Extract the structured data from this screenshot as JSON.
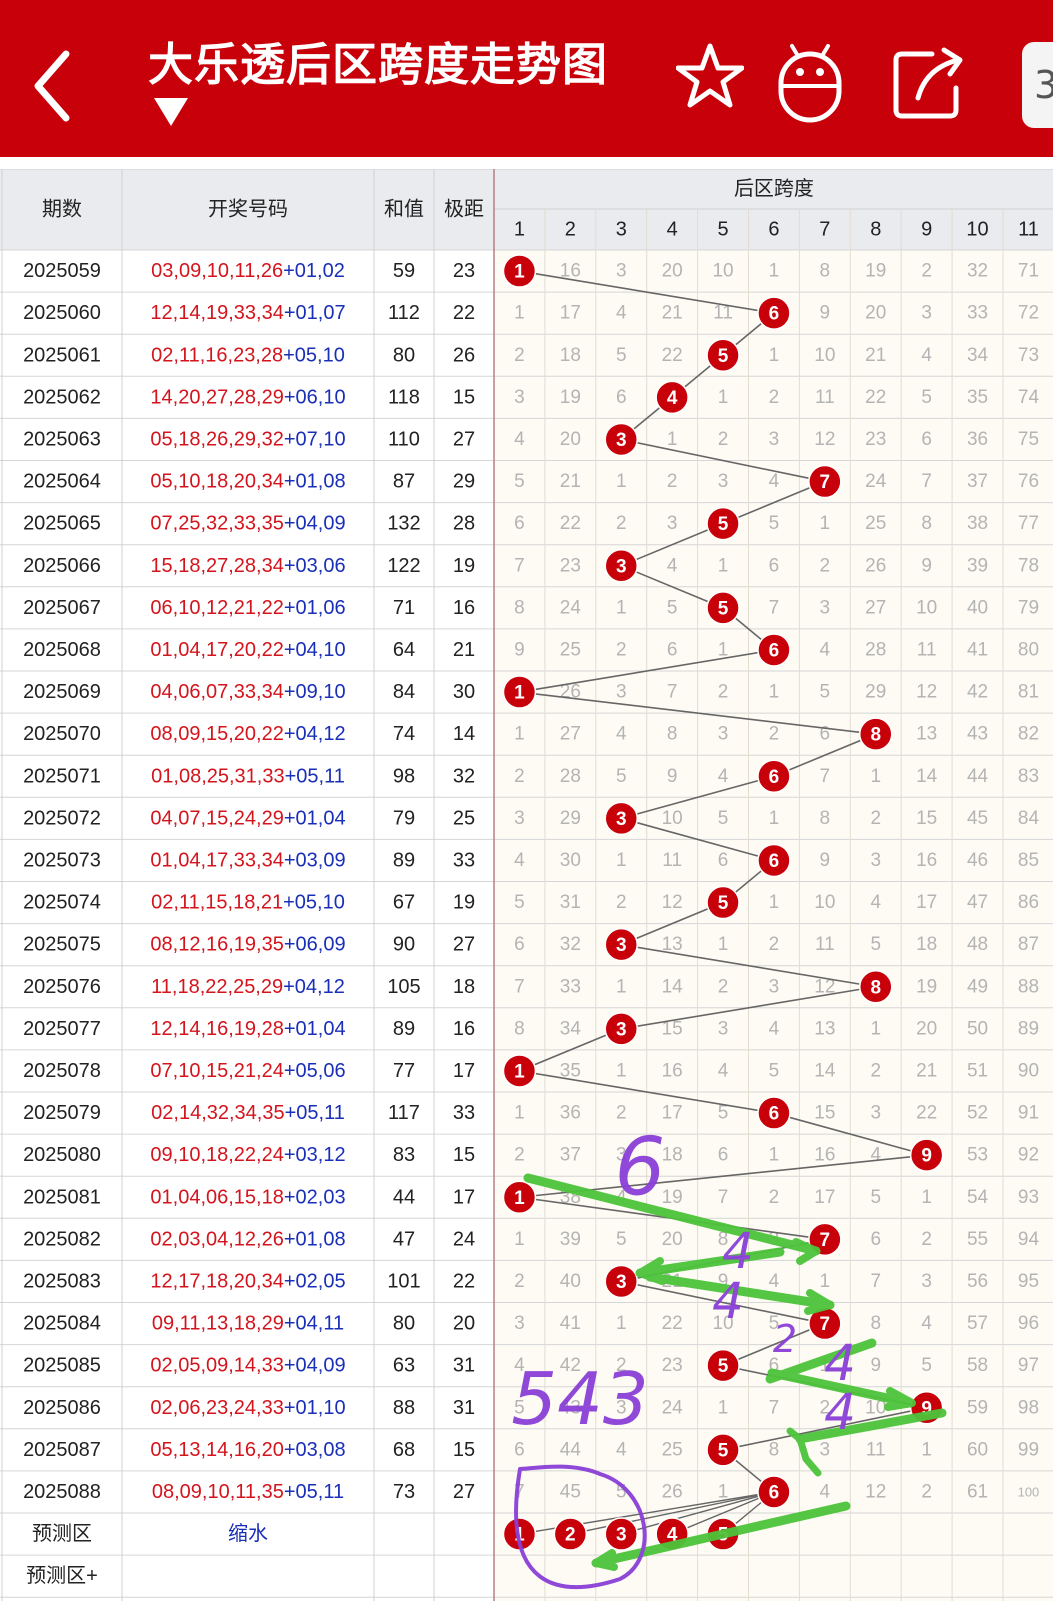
{
  "header": {
    "title": "大乐透后区跨度走势图",
    "edge_label": "3"
  },
  "colors": {
    "header_bg": "#c8000a",
    "red_ball": "#c8000a",
    "red_numbers": "#d4141c",
    "blue_numbers": "#1a2fb8",
    "miss_numbers": "#b4b4b4",
    "grid_header_bg": "#e9ebee",
    "grid_body_bg": "#fdfbf3",
    "annotation_green": "#4dc43a",
    "annotation_purple": "#8a3fd6"
  },
  "table": {
    "headers": {
      "period": "期数",
      "numbers": "开奖号码",
      "sum": "和值",
      "range": "极距",
      "span_group": "后区跨度"
    },
    "span_columns": [
      "1",
      "2",
      "3",
      "4",
      "5",
      "6",
      "7",
      "8",
      "9",
      "10",
      "11"
    ],
    "rows": [
      {
        "period": "2025059",
        "front": "03,09,10,11,26",
        "back": "+01,02",
        "sum": "59",
        "range": "23",
        "hit": 1,
        "miss": [
          "",
          "16",
          "3",
          "20",
          "10",
          "1",
          "8",
          "19",
          "2",
          "32",
          "71"
        ]
      },
      {
        "period": "2025060",
        "front": "12,14,19,33,34",
        "back": "+01,07",
        "sum": "112",
        "range": "22",
        "hit": 6,
        "miss": [
          "1",
          "17",
          "4",
          "21",
          "11",
          "",
          "9",
          "20",
          "3",
          "33",
          "72"
        ]
      },
      {
        "period": "2025061",
        "front": "02,11,16,23,28",
        "back": "+05,10",
        "sum": "80",
        "range": "26",
        "hit": 5,
        "miss": [
          "2",
          "18",
          "5",
          "22",
          "",
          "1",
          "10",
          "21",
          "4",
          "34",
          "73"
        ]
      },
      {
        "period": "2025062",
        "front": "14,20,27,28,29",
        "back": "+06,10",
        "sum": "118",
        "range": "15",
        "hit": 4,
        "miss": [
          "3",
          "19",
          "6",
          "",
          "1",
          "2",
          "11",
          "22",
          "5",
          "35",
          "74"
        ]
      },
      {
        "period": "2025063",
        "front": "05,18,26,29,32",
        "back": "+07,10",
        "sum": "110",
        "range": "27",
        "hit": 3,
        "miss": [
          "4",
          "20",
          "",
          "1",
          "2",
          "3",
          "12",
          "23",
          "6",
          "36",
          "75"
        ]
      },
      {
        "period": "2025064",
        "front": "05,10,18,20,34",
        "back": "+01,08",
        "sum": "87",
        "range": "29",
        "hit": 7,
        "miss": [
          "5",
          "21",
          "1",
          "2",
          "3",
          "4",
          "",
          "24",
          "7",
          "37",
          "76"
        ]
      },
      {
        "period": "2025065",
        "front": "07,25,32,33,35",
        "back": "+04,09",
        "sum": "132",
        "range": "28",
        "hit": 5,
        "miss": [
          "6",
          "22",
          "2",
          "3",
          "",
          "5",
          "1",
          "25",
          "8",
          "38",
          "77"
        ]
      },
      {
        "period": "2025066",
        "front": "15,18,27,28,34",
        "back": "+03,06",
        "sum": "122",
        "range": "19",
        "hit": 3,
        "miss": [
          "7",
          "23",
          "",
          "4",
          "1",
          "6",
          "2",
          "26",
          "9",
          "39",
          "78"
        ]
      },
      {
        "period": "2025067",
        "front": "06,10,12,21,22",
        "back": "+01,06",
        "sum": "71",
        "range": "16",
        "hit": 5,
        "miss": [
          "8",
          "24",
          "1",
          "5",
          "",
          "7",
          "3",
          "27",
          "10",
          "40",
          "79"
        ]
      },
      {
        "period": "2025068",
        "front": "01,04,17,20,22",
        "back": "+04,10",
        "sum": "64",
        "range": "21",
        "hit": 6,
        "miss": [
          "9",
          "25",
          "2",
          "6",
          "1",
          "",
          "4",
          "28",
          "11",
          "41",
          "80"
        ]
      },
      {
        "period": "2025069",
        "front": "04,06,07,33,34",
        "back": "+09,10",
        "sum": "84",
        "range": "30",
        "hit": 1,
        "miss": [
          "",
          "26",
          "3",
          "7",
          "2",
          "1",
          "5",
          "29",
          "12",
          "42",
          "81"
        ]
      },
      {
        "period": "2025070",
        "front": "08,09,15,20,22",
        "back": "+04,12",
        "sum": "74",
        "range": "14",
        "hit": 8,
        "miss": [
          "1",
          "27",
          "4",
          "8",
          "3",
          "2",
          "6",
          "",
          "13",
          "43",
          "82"
        ]
      },
      {
        "period": "2025071",
        "front": "01,08,25,31,33",
        "back": "+05,11",
        "sum": "98",
        "range": "32",
        "hit": 6,
        "miss": [
          "2",
          "28",
          "5",
          "9",
          "4",
          "",
          "7",
          "1",
          "14",
          "44",
          "83"
        ]
      },
      {
        "period": "2025072",
        "front": "04,07,15,24,29",
        "back": "+01,04",
        "sum": "79",
        "range": "25",
        "hit": 3,
        "miss": [
          "3",
          "29",
          "",
          "10",
          "5",
          "1",
          "8",
          "2",
          "15",
          "45",
          "84"
        ]
      },
      {
        "period": "2025073",
        "front": "01,04,17,33,34",
        "back": "+03,09",
        "sum": "89",
        "range": "33",
        "hit": 6,
        "miss": [
          "4",
          "30",
          "1",
          "11",
          "6",
          "",
          "9",
          "3",
          "16",
          "46",
          "85"
        ]
      },
      {
        "period": "2025074",
        "front": "02,11,15,18,21",
        "back": "+05,10",
        "sum": "67",
        "range": "19",
        "hit": 5,
        "miss": [
          "5",
          "31",
          "2",
          "12",
          "",
          "1",
          "10",
          "4",
          "17",
          "47",
          "86"
        ]
      },
      {
        "period": "2025075",
        "front": "08,12,16,19,35",
        "back": "+06,09",
        "sum": "90",
        "range": "27",
        "hit": 3,
        "miss": [
          "6",
          "32",
          "",
          "13",
          "1",
          "2",
          "11",
          "5",
          "18",
          "48",
          "87"
        ]
      },
      {
        "period": "2025076",
        "front": "11,18,22,25,29",
        "back": "+04,12",
        "sum": "105",
        "range": "18",
        "hit": 8,
        "miss": [
          "7",
          "33",
          "1",
          "14",
          "2",
          "3",
          "12",
          "",
          "19",
          "49",
          "88"
        ]
      },
      {
        "period": "2025077",
        "front": "12,14,16,19,28",
        "back": "+01,04",
        "sum": "89",
        "range": "16",
        "hit": 3,
        "miss": [
          "8",
          "34",
          "",
          "15",
          "3",
          "4",
          "13",
          "1",
          "20",
          "50",
          "89"
        ]
      },
      {
        "period": "2025078",
        "front": "07,10,15,21,24",
        "back": "+05,06",
        "sum": "77",
        "range": "17",
        "hit": 1,
        "miss": [
          "",
          "35",
          "1",
          "16",
          "4",
          "5",
          "14",
          "2",
          "21",
          "51",
          "90"
        ]
      },
      {
        "period": "2025079",
        "front": "02,14,32,34,35",
        "back": "+05,11",
        "sum": "117",
        "range": "33",
        "hit": 6,
        "miss": [
          "1",
          "36",
          "2",
          "17",
          "5",
          "",
          "15",
          "3",
          "22",
          "52",
          "91"
        ]
      },
      {
        "period": "2025080",
        "front": "09,10,18,22,24",
        "back": "+03,12",
        "sum": "83",
        "range": "15",
        "hit": 9,
        "miss": [
          "2",
          "37",
          "3",
          "18",
          "6",
          "1",
          "16",
          "4",
          "",
          "53",
          "92"
        ]
      },
      {
        "period": "2025081",
        "front": "01,04,06,15,18",
        "back": "+02,03",
        "sum": "44",
        "range": "17",
        "hit": 1,
        "miss": [
          "",
          "38",
          "4",
          "19",
          "7",
          "2",
          "17",
          "5",
          "1",
          "54",
          "93"
        ]
      },
      {
        "period": "2025082",
        "front": "02,03,04,12,26",
        "back": "+01,08",
        "sum": "47",
        "range": "24",
        "hit": 7,
        "miss": [
          "1",
          "39",
          "5",
          "20",
          "8",
          "3",
          "",
          "6",
          "2",
          "55",
          "94"
        ]
      },
      {
        "period": "2025083",
        "front": "12,17,18,20,34",
        "back": "+02,05",
        "sum": "101",
        "range": "22",
        "hit": 3,
        "miss": [
          "2",
          "40",
          "",
          "21",
          "9",
          "4",
          "1",
          "7",
          "3",
          "56",
          "95"
        ]
      },
      {
        "period": "2025084",
        "front": "09,11,13,18,29",
        "back": "+04,11",
        "sum": "80",
        "range": "20",
        "hit": 7,
        "miss": [
          "3",
          "41",
          "1",
          "22",
          "10",
          "5",
          "",
          "8",
          "4",
          "57",
          "96"
        ]
      },
      {
        "period": "2025085",
        "front": "02,05,09,14,33",
        "back": "+04,09",
        "sum": "63",
        "range": "31",
        "hit": 5,
        "miss": [
          "4",
          "42",
          "2",
          "23",
          "",
          "6",
          "1",
          "9",
          "5",
          "58",
          "97"
        ]
      },
      {
        "period": "2025086",
        "front": "02,06,23,24,33",
        "back": "+01,10",
        "sum": "88",
        "range": "31",
        "hit": 9,
        "miss": [
          "5",
          "43",
          "3",
          "24",
          "1",
          "7",
          "2",
          "10",
          "",
          "59",
          "98"
        ]
      },
      {
        "period": "2025087",
        "front": "05,13,14,16,20",
        "back": "+03,08",
        "sum": "68",
        "range": "15",
        "hit": 5,
        "miss": [
          "6",
          "44",
          "4",
          "25",
          "",
          "8",
          "3",
          "11",
          "1",
          "60",
          "99"
        ]
      },
      {
        "period": "2025088",
        "front": "08,09,10,11,35",
        "back": "+05,11",
        "sum": "73",
        "range": "27",
        "hit": 6,
        "miss": [
          "7",
          "45",
          "5",
          "26",
          "1",
          "",
          "4",
          "12",
          "2",
          "61",
          "100"
        ]
      }
    ],
    "forecast_row": {
      "label": "预测区",
      "value": "缩水",
      "balls": [
        "1",
        "2",
        "3",
        "4",
        "5"
      ]
    },
    "forecast_plus_row": {
      "label": "预测区+"
    }
  },
  "annotations": {
    "handwriting": [
      "6",
      "4",
      "4",
      "2",
      "4",
      "4",
      "543"
    ]
  }
}
